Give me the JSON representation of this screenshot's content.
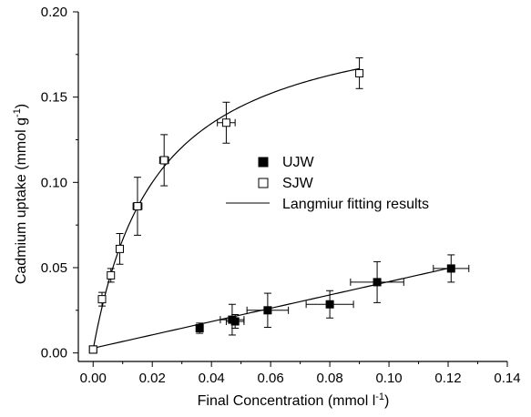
{
  "chart_data": {
    "type": "scatter",
    "title": "",
    "xlabel": "Final Concentration (mmol l",
    "xlabel_sup": "-1",
    "xlabel_end": ")",
    "ylabel": "Cadmium uptake (mmol g",
    "ylabel_sup": "-1",
    "ylabel_end": ")",
    "xlim": [
      -0.005,
      0.14
    ],
    "ylim": [
      -0.005,
      0.2
    ],
    "xticks": [
      0.0,
      0.02,
      0.04,
      0.06,
      0.08,
      0.1,
      0.12,
      0.14
    ],
    "xtick_labels": [
      "0.00",
      "0.02",
      "0.04",
      "0.06",
      "0.08",
      "0.10",
      "0.12",
      "0.14"
    ],
    "yticks": [
      0.0,
      0.05,
      0.1,
      0.15,
      0.2
    ],
    "ytick_labels": [
      "0.00",
      "0.05",
      "0.10",
      "0.15",
      "0.20"
    ],
    "grid": false,
    "legend_position": "center-right",
    "series": [
      {
        "name": "UJW",
        "marker": "filled-square",
        "points": [
          {
            "x": 0.0,
            "y": 0.002,
            "xerr": 0.0,
            "yerr": 0.0
          },
          {
            "x": 0.036,
            "y": 0.0145,
            "xerr": 0.001,
            "yerr": 0.003
          },
          {
            "x": 0.047,
            "y": 0.0195,
            "xerr": 0.004,
            "yerr": 0.009
          },
          {
            "x": 0.048,
            "y": 0.0185,
            "xerr": 0.003,
            "yerr": 0.004
          },
          {
            "x": 0.059,
            "y": 0.025,
            "xerr": 0.007,
            "yerr": 0.01
          },
          {
            "x": 0.08,
            "y": 0.0285,
            "xerr": 0.008,
            "yerr": 0.008
          },
          {
            "x": 0.096,
            "y": 0.0415,
            "xerr": 0.009,
            "yerr": 0.012
          },
          {
            "x": 0.121,
            "y": 0.0495,
            "xerr": 0.006,
            "yerr": 0.008
          }
        ]
      },
      {
        "name": "SJW",
        "marker": "open-square",
        "points": [
          {
            "x": 0.0,
            "y": 0.002,
            "xerr": 0.0,
            "yerr": 0.0
          },
          {
            "x": 0.003,
            "y": 0.0315,
            "xerr": 0.001,
            "yerr": 0.004
          },
          {
            "x": 0.006,
            "y": 0.0455,
            "xerr": 0.001,
            "yerr": 0.004
          },
          {
            "x": 0.009,
            "y": 0.061,
            "xerr": 0.001,
            "yerr": 0.009
          },
          {
            "x": 0.015,
            "y": 0.086,
            "xerr": 0.0015,
            "yerr": 0.017
          },
          {
            "x": 0.024,
            "y": 0.113,
            "xerr": 0.0015,
            "yerr": 0.015
          },
          {
            "x": 0.045,
            "y": 0.135,
            "xerr": 0.003,
            "yerr": 0.012
          },
          {
            "x": 0.09,
            "y": 0.164,
            "xerr": 0.0,
            "yerr": 0.009
          }
        ]
      }
    ],
    "fits": [
      {
        "name": "Langmiur fitting results",
        "kind": "langmuir",
        "qmax": 0.2045,
        "K": 46.0,
        "offset": 0.002,
        "xmin": 0.0,
        "xmax": 0.09
      },
      {
        "name": "Langmiur fitting results",
        "kind": "linear",
        "slope": 0.39,
        "intercept": 0.0028,
        "xmin": 0.0,
        "xmax": 0.121
      }
    ],
    "legend": [
      {
        "label": "UJW",
        "marker": "filled-square"
      },
      {
        "label": "SJW",
        "marker": "open-square"
      },
      {
        "label": "Langmiur fitting results",
        "marker": "line"
      }
    ]
  }
}
